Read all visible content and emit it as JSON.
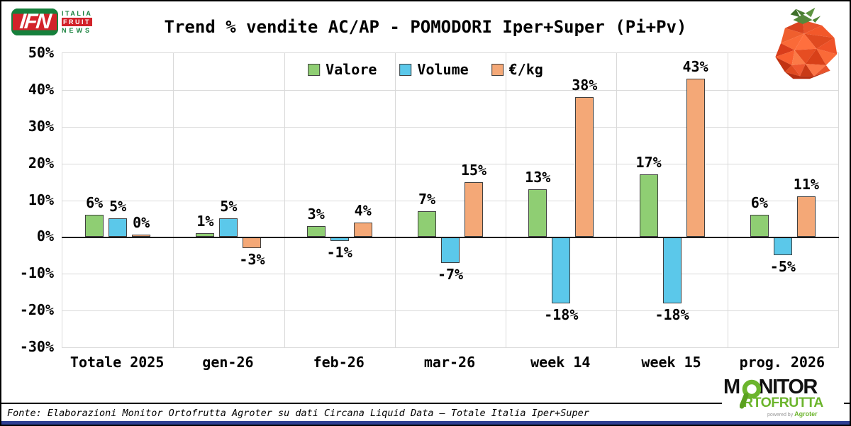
{
  "brand_ifn": {
    "abbr": "IFN",
    "italia": "ITALIA",
    "fruit": "FRUIT",
    "news": "NEWS"
  },
  "header": {
    "title": "Trend % vendite AC/AP - POMODORI Iper+Super (Pi+Pv)"
  },
  "chart_data": {
    "type": "bar",
    "title": "Trend % vendite AC/AP - POMODORI Iper+Super (Pi+Pv)",
    "categories": [
      "Totale 2025",
      "gen-26",
      "feb-26",
      "mar-26",
      "week 14",
      "week 15",
      "prog. 2026"
    ],
    "series": [
      {
        "name": "Valore",
        "color": "#8FCE73",
        "values": [
          6,
          1,
          3,
          7,
          13,
          17,
          6
        ]
      },
      {
        "name": "Volume",
        "color": "#5BC8EA",
        "values": [
          5,
          5,
          -1,
          -7,
          -18,
          -18,
          -5
        ]
      },
      {
        "name": "€/kg",
        "color": "#F4A877",
        "values": [
          0,
          -3,
          4,
          15,
          38,
          43,
          11
        ]
      }
    ],
    "value_suffix": "%",
    "ylim": [
      -30,
      50
    ],
    "ytick_step": 10,
    "yticks": [
      "50%",
      "40%",
      "30%",
      "20%",
      "10%",
      "0%",
      "-10%",
      "-20%",
      "-30%"
    ],
    "grid": true,
    "legend_position": "top-center",
    "bar_border_color": "#404040",
    "grid_color": "#D9D9D9",
    "zero_line_color": "#1a1a1a"
  },
  "footer": {
    "source": "Fonte: Elaborazioni Monitor Ortofrutta Agroter su dati Circana Liquid Data – Totale Italia Iper+Super"
  },
  "brand_monitor": {
    "m": "M",
    "nitor": "NITOR",
    "rtofrutta": "RTOFRUTTA",
    "powered_by": "powered by",
    "agroter": "Agroter"
  },
  "colors": {
    "bottom_bar": "#2E3F93",
    "ifn_green": "#16803C",
    "ifn_red": "#D2232A",
    "monitor_green": "#6CB52D"
  }
}
